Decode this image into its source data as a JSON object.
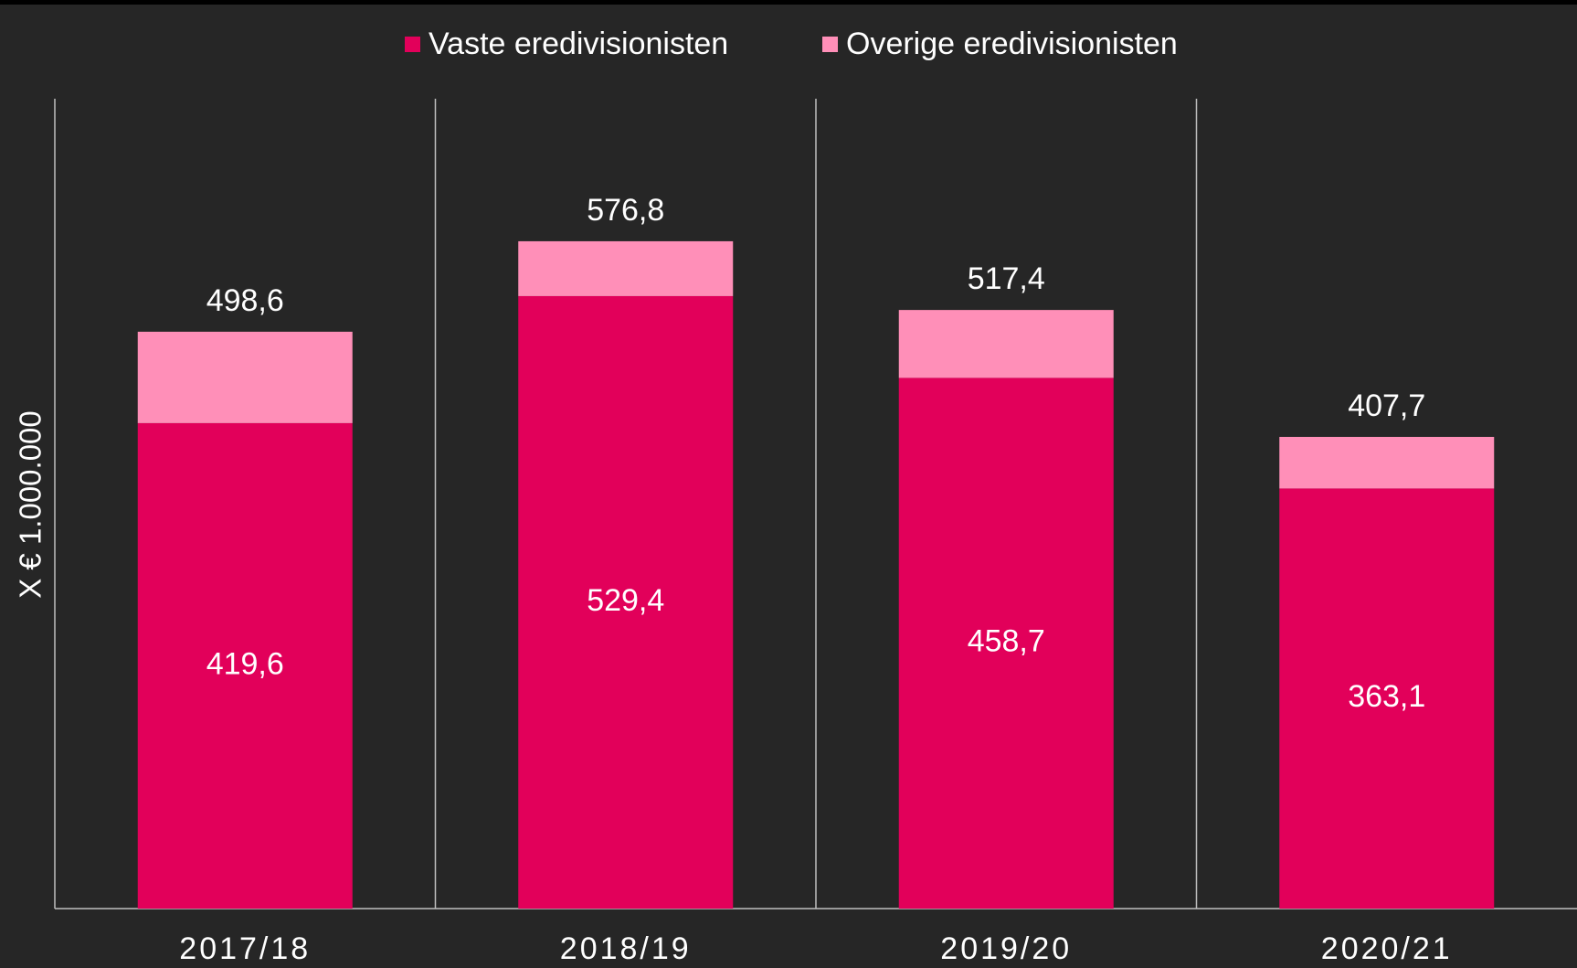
{
  "chart_data": {
    "type": "bar",
    "stacked": true,
    "y_label": "X € 1.000.000",
    "categories": [
      "2017/18",
      "2018/19",
      "2019/20",
      "2020/21"
    ],
    "series": [
      {
        "name": "Vaste eredivisionisten",
        "color": "#e2005a",
        "values": [
          419.6,
          529.4,
          458.7,
          363.1
        ],
        "value_labels": [
          "419,6",
          "529,4",
          "458,7",
          "363,1"
        ]
      },
      {
        "name": "Overige eredivisionisten",
        "color": "#ff8fb8",
        "values": [
          79.0,
          47.4,
          58.7,
          44.6
        ]
      }
    ],
    "totals": [
      498.6,
      576.8,
      517.4,
      407.7
    ],
    "total_labels": [
      "498,6",
      "576,8",
      "517,4",
      "407,7"
    ],
    "ylim": [
      0,
      700
    ],
    "legend": "top",
    "background": "#262626"
  }
}
